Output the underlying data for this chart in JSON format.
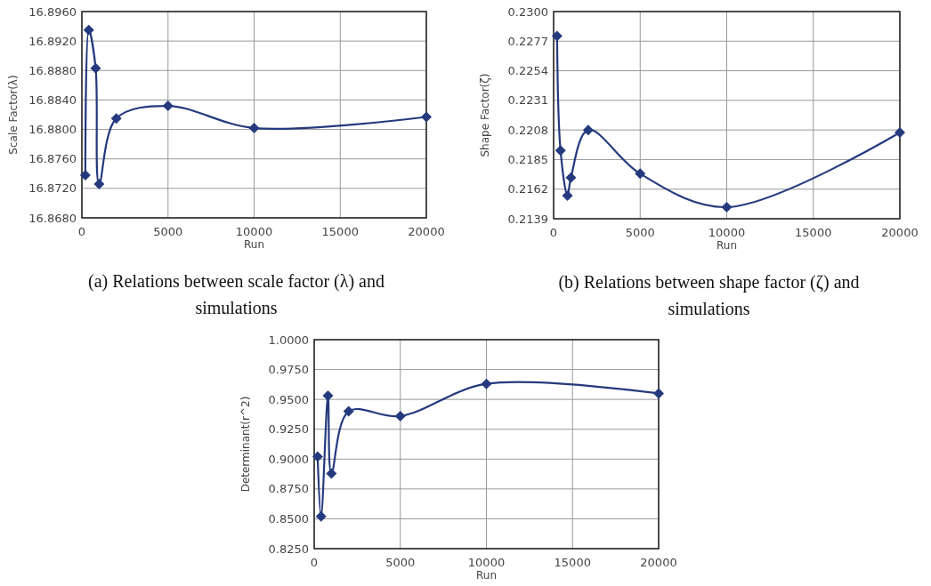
{
  "chart_data": [
    {
      "type": "line",
      "xlabel": "Run",
      "ylabel": "Scale Factor(λ)",
      "x": [
        200,
        400,
        800,
        1000,
        2000,
        5000,
        10000,
        20000
      ],
      "series": [
        {
          "color": "#253a7e",
          "values": [
            16.8738,
            16.8935,
            16.8883,
            16.8726,
            16.8815,
            16.8832,
            16.8802,
            16.8817
          ]
        }
      ],
      "xlim": [
        0,
        20000
      ],
      "xticks": [
        0,
        5000,
        10000,
        15000,
        20000
      ],
      "ylim": [
        16.868,
        16.896
      ],
      "yticks": [
        {
          "value": 16.868,
          "label": "16.8680"
        },
        {
          "value": 16.872,
          "label": "16.8720"
        },
        {
          "value": 16.876,
          "label": "16.8760"
        },
        {
          "value": 16.88,
          "label": "16.8800"
        },
        {
          "value": 16.884,
          "label": "16.8840"
        },
        {
          "value": 16.888,
          "label": "16.8880"
        },
        {
          "value": 16.892,
          "label": "16.8920"
        },
        {
          "value": 16.896,
          "label": "16.8960"
        }
      ],
      "grid": true,
      "marker": "diamond",
      "line_style": "solid",
      "annotations": [
        "(a) Relations between scale factor (λ) and simulations"
      ]
    },
    {
      "type": "line",
      "xlabel": "Run",
      "ylabel": "Shape Factor(ζ)",
      "x": [
        200,
        400,
        800,
        1000,
        2000,
        5000,
        10000,
        20000
      ],
      "series": [
        {
          "color": "#253a7e",
          "values": [
            0.2281,
            0.2192,
            0.2157,
            0.2171,
            0.2208,
            0.2174,
            0.2148,
            0.2206
          ]
        }
      ],
      "xlim": [
        0,
        20000
      ],
      "xticks": [
        0,
        5000,
        10000,
        15000,
        20000
      ],
      "ylim": [
        0.2139,
        0.23
      ],
      "yticks": [
        0.2139,
        0.2162,
        0.2185,
        0.2208,
        0.2231,
        0.2254,
        0.2277,
        {
          "value": 0.23,
          "label": "0.2300"
        }
      ],
      "grid": true,
      "marker": "diamond",
      "line_style": "solid",
      "annotations": [
        "(b) Relations between shape factor (ζ) and simulations"
      ]
    },
    {
      "type": "line",
      "xlabel": "Run",
      "ylabel": "Determinant(r^2)",
      "x": [
        200,
        400,
        800,
        1000,
        2000,
        5000,
        10000,
        20000
      ],
      "series": [
        {
          "color": "#253a7e",
          "values": [
            0.902,
            0.852,
            0.953,
            0.888,
            0.94,
            0.936,
            0.963,
            0.955
          ]
        }
      ],
      "xlim": [
        0,
        20000
      ],
      "xticks": [
        0,
        5000,
        10000,
        15000,
        20000
      ],
      "ylim": [
        0.825,
        1
      ],
      "yticks": [
        {
          "value": 0.825,
          "label": "0.8250"
        },
        {
          "value": 0.85,
          "label": "0.8500"
        },
        {
          "value": 0.875,
          "label": "0.8750"
        },
        {
          "value": 0.9,
          "label": "0.9000"
        },
        {
          "value": 0.925,
          "label": "0.9250"
        },
        {
          "value": 0.95,
          "label": "0.9500"
        },
        {
          "value": 0.975,
          "label": "0.9750"
        },
        {
          "value": 1,
          "label": "1.0000"
        }
      ],
      "grid": true,
      "marker": "diamond",
      "line_style": "solid"
    }
  ]
}
